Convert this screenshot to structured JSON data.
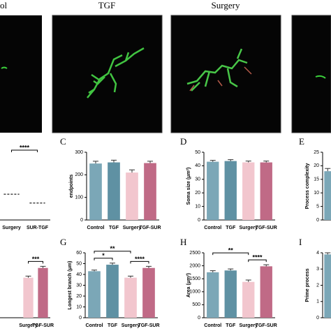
{
  "image_titles": [
    "ol",
    "TGF",
    "Surgery"
  ],
  "chart_data": [
    {
      "type": "strip",
      "categories": [
        "Surgery",
        "SUR-TGF"
      ],
      "values": [
        38,
        25
      ],
      "colors": [
        "#e8a9b8",
        "#b85a7a"
      ],
      "ylim": [
        0,
        100
      ],
      "significance": [
        {
          "from": 0,
          "to": 1,
          "label": "****"
        }
      ]
    },
    {
      "type": "bar",
      "label": "C",
      "ylabel": "endpoints",
      "categories": [
        "Control",
        "TGF",
        "Surgery",
        "TGF-SUR"
      ],
      "values": [
        250,
        255,
        210,
        252
      ],
      "errors": [
        10,
        10,
        12,
        8
      ],
      "colors": [
        "#7ba7b7",
        "#5f91a3",
        "#f2c6ce",
        "#c06a86"
      ],
      "ylim": [
        0,
        300
      ],
      "yticks": [
        0,
        100,
        200,
        300
      ]
    },
    {
      "type": "bar",
      "label": "D",
      "ylabel": "Soma size (μm²)",
      "categories": [
        "Control",
        "TGF",
        "Surgery",
        "TGF-SUR"
      ],
      "values": [
        43,
        43.5,
        42.5,
        42.5
      ],
      "errors": [
        1,
        1,
        1,
        1
      ],
      "colors": [
        "#7ba7b7",
        "#5f91a3",
        "#f2c6ce",
        "#c06a86"
      ],
      "ylim": [
        0,
        50
      ],
      "yticks": [
        0,
        10,
        20,
        30,
        40,
        50
      ]
    },
    {
      "type": "bar",
      "label": "E",
      "ylabel": "Process complexity",
      "categories": [
        null
      ],
      "values": [
        18
      ],
      "errors": [
        1
      ],
      "colors": [
        "#7ba7b7"
      ],
      "ylim": [
        0,
        25
      ],
      "yticks": [
        0,
        5,
        10,
        15,
        20,
        25
      ]
    },
    {
      "type": "bar",
      "categories": [
        "Surgery",
        "TGF-SUR"
      ],
      "values": [
        37,
        46
      ],
      "errors": [
        1.5,
        1.5
      ],
      "colors": [
        "#f2c6ce",
        "#c06a86"
      ],
      "ylim": [
        0,
        60
      ],
      "significance": [
        {
          "from": 0,
          "to": 1,
          "label": "***"
        }
      ]
    },
    {
      "type": "bar",
      "label": "G",
      "ylabel": "Longest branch (μm)",
      "categories": [
        "Control",
        "TGF",
        "Surgery",
        "TGF-SUR"
      ],
      "values": [
        43,
        49,
        37,
        46
      ],
      "errors": [
        1,
        1.5,
        1.5,
        1.5
      ],
      "colors": [
        "#7ba7b7",
        "#5f91a3",
        "#f2c6ce",
        "#c06a86"
      ],
      "ylim": [
        0,
        60
      ],
      "yticks": [
        0,
        10,
        20,
        30,
        40,
        50,
        60
      ],
      "significance": [
        {
          "from": 0,
          "to": 1,
          "label": "*"
        },
        {
          "from": 2,
          "to": 3,
          "label": "****"
        },
        {
          "from": 0,
          "to": 2,
          "label": "**"
        }
      ]
    },
    {
      "type": "bar",
      "label": "H",
      "ylabel": "Area (μm²)",
      "categories": [
        "Control",
        "TGF",
        "Surgery",
        "TGF-SUR"
      ],
      "values": [
        1750,
        1820,
        1380,
        1980
      ],
      "errors": [
        60,
        60,
        70,
        60
      ],
      "colors": [
        "#7ba7b7",
        "#5f91a3",
        "#f2c6ce",
        "#c06a86"
      ],
      "ylim": [
        0,
        2500
      ],
      "yticks": [
        0,
        500,
        1000,
        1500,
        2000,
        2500
      ],
      "significance": [
        {
          "from": 2,
          "to": 3,
          "label": "****"
        },
        {
          "from": 0,
          "to": 2,
          "label": "**"
        }
      ]
    },
    {
      "type": "bar",
      "label": "I",
      "ylabel": "Prime process",
      "categories": [
        null
      ],
      "values": [
        3.9
      ],
      "errors": [
        0.1
      ],
      "colors": [
        "#7ba7b7"
      ],
      "ylim": [
        0,
        4
      ],
      "yticks": [
        0,
        1,
        2,
        3,
        4
      ]
    }
  ]
}
